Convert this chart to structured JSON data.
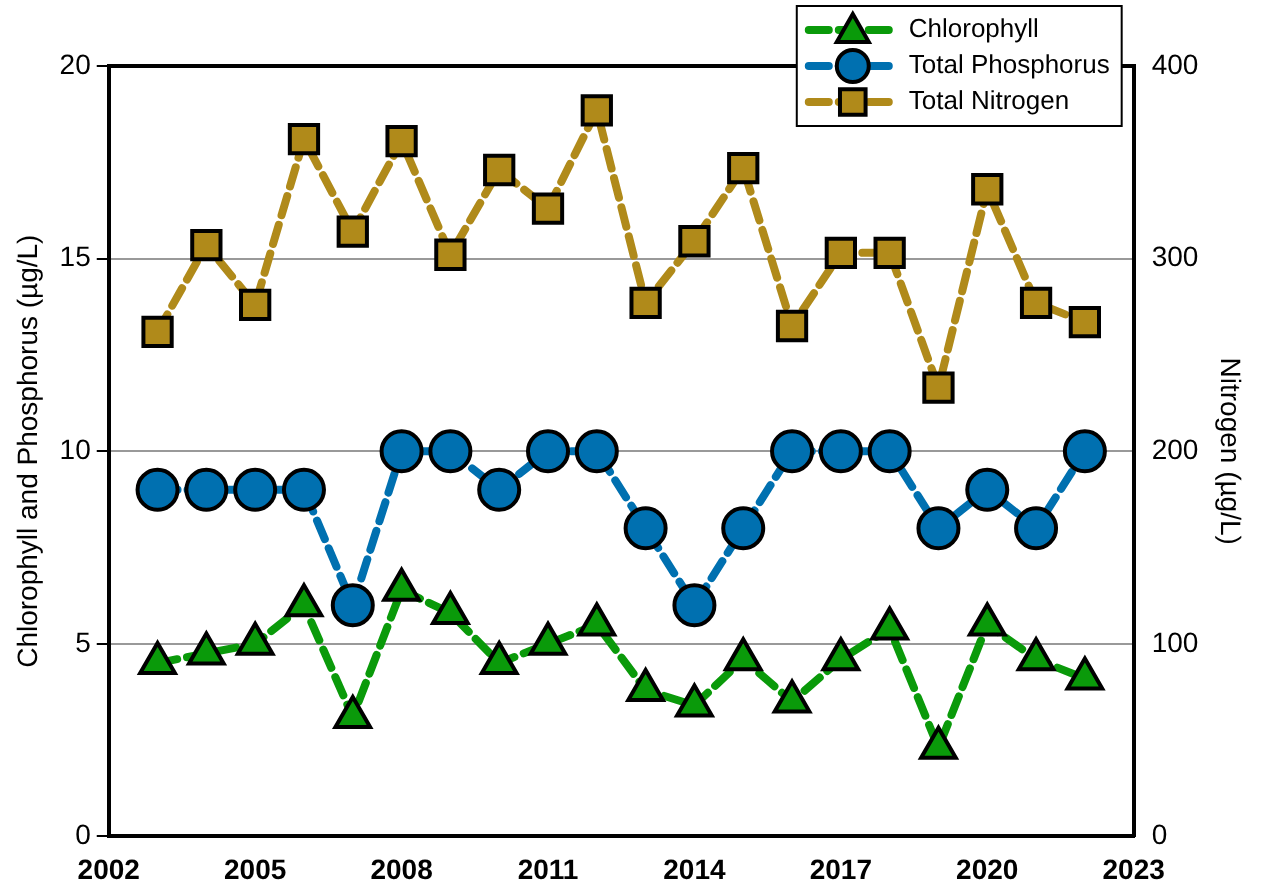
{
  "chart_data": {
    "type": "line",
    "xlabel": null,
    "ylabel": "Chlorophyll and Phosphorus (µg/L)",
    "y2label": "Nitrogen (µg/L)",
    "x": [
      2003,
      2004,
      2005,
      2006,
      2007,
      2008,
      2009,
      2010,
      2011,
      2012,
      2013,
      2014,
      2015,
      2016,
      2017,
      2018,
      2019,
      2020,
      2021,
      2022
    ],
    "series": [
      {
        "name": "Chlorophyll",
        "color": "#0a9a0a",
        "marker": "triangle",
        "values": [
          4.5,
          4.75,
          5.0,
          6.0,
          3.1,
          6.4,
          5.8,
          4.5,
          5.0,
          5.5,
          3.8,
          3.4,
          4.6,
          3.5,
          4.6,
          5.4,
          2.3,
          5.5,
          4.6,
          4.1
        ]
      },
      {
        "name": "Total Phosphorus",
        "color": "#0070b0",
        "marker": "circle",
        "values": [
          9,
          9,
          9,
          9,
          6,
          10,
          10,
          9,
          10,
          10,
          8,
          6,
          8,
          10,
          10,
          10,
          8,
          9,
          8,
          10
        ]
      },
      {
        "name": "Total Nitrogen",
        "color": "#b08a1a",
        "marker": "square",
        "axis": "y2",
        "values": [
          262,
          307,
          276,
          362,
          314,
          361,
          302,
          346,
          326,
          377,
          277,
          309,
          347,
          265,
          303,
          303,
          233,
          336,
          277,
          267
        ]
      }
    ],
    "xlim": [
      2002,
      2023
    ],
    "xticks": [
      2002,
      2005,
      2008,
      2011,
      2014,
      2017,
      2020,
      2023
    ],
    "ylim": [
      0,
      20
    ],
    "yticks": [
      0,
      5,
      10,
      15,
      20
    ],
    "y2lim": [
      0,
      400
    ],
    "y2ticks": [
      0,
      100,
      200,
      300,
      400
    ],
    "grid": "y",
    "legend": "top right",
    "line_style": "dashed"
  }
}
